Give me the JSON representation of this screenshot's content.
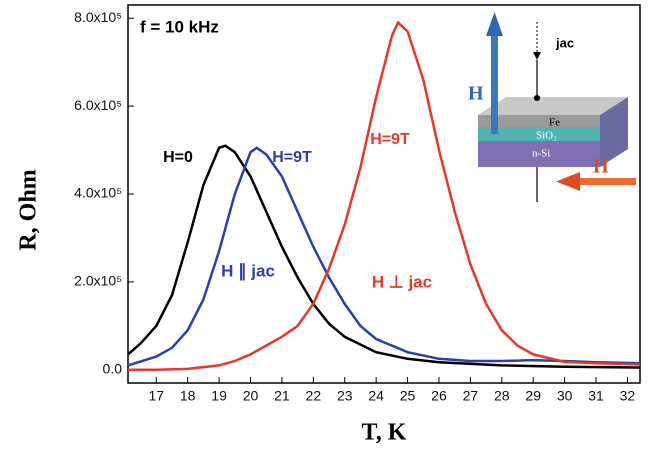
{
  "chart_data": {
    "type": "line",
    "x_label": "T, K",
    "y_label": "R, Ohm",
    "xlim": [
      16.1,
      32.4
    ],
    "ylim": [
      -30000,
      830000
    ],
    "xticks": [
      17,
      18,
      19,
      20,
      21,
      22,
      23,
      24,
      25,
      26,
      27,
      28,
      29,
      30,
      31,
      32
    ],
    "yticks": [
      {
        "value": 0,
        "label": "0.0"
      },
      {
        "value": 200000,
        "label": "2.0x10⁵"
      },
      {
        "value": 400000,
        "label": "4.0x10⁵"
      },
      {
        "value": 600000,
        "label": "6.0x10⁵"
      },
      {
        "value": 800000,
        "label": "8.0x10⁵"
      }
    ],
    "series": [
      {
        "name": "H=0",
        "color": "#000000",
        "x": [
          16.1,
          16.5,
          17,
          17.5,
          18,
          18.5,
          19,
          19.2,
          19.5,
          20,
          20.5,
          21,
          21.5,
          22,
          22.5,
          23,
          24,
          25,
          26,
          28,
          30,
          32.4
        ],
        "values": [
          35000,
          60000,
          100000,
          170000,
          290000,
          420000,
          505000,
          510000,
          495000,
          440000,
          360000,
          280000,
          210000,
          150000,
          105000,
          75000,
          40000,
          25000,
          17000,
          10000,
          7000,
          5000
        ]
      },
      {
        "name": "H=9T",
        "color": "#2b3fa6",
        "x": [
          16.1,
          17,
          17.5,
          18,
          18.5,
          19,
          19.5,
          20,
          20.2,
          20.5,
          21,
          21.5,
          22,
          22.5,
          23,
          23.5,
          24,
          25,
          26,
          27,
          28,
          29,
          30,
          31,
          32.4
        ],
        "values": [
          10000,
          30000,
          50000,
          90000,
          160000,
          270000,
          400000,
          495000,
          505000,
          490000,
          440000,
          360000,
          280000,
          210000,
          150000,
          100000,
          70000,
          40000,
          25000,
          20000,
          20000,
          22000,
          20000,
          17000,
          15000
        ]
      },
      {
        "name": "H=9T",
        "color": "#e8362b",
        "x": [
          16.1,
          17,
          18,
          19,
          19.5,
          20,
          20.5,
          21,
          21.5,
          22,
          22.5,
          23,
          23.5,
          24,
          24.5,
          24.7,
          25,
          25.5,
          26,
          26.5,
          27,
          27.5,
          28,
          28.5,
          29,
          30,
          31,
          32.4
        ],
        "values": [
          0,
          0,
          2000,
          10000,
          20000,
          35000,
          55000,
          75000,
          100000,
          150000,
          230000,
          330000,
          460000,
          620000,
          760000,
          790000,
          770000,
          660000,
          500000,
          360000,
          240000,
          150000,
          90000,
          55000,
          35000,
          18000,
          15000,
          12000
        ]
      }
    ],
    "annotations": [
      {
        "text": "f = 10 kHz",
        "color": "#000000"
      },
      {
        "text": "H ∥ jac",
        "color": "#2b3fa6"
      },
      {
        "text": "H ⊥ jac",
        "color": "#e8362b"
      }
    ],
    "inset": {
      "layers": [
        "Fe",
        "SiO₂",
        "n-Si"
      ],
      "field_labels": [
        "H",
        "H"
      ],
      "current_label": "jac"
    }
  }
}
